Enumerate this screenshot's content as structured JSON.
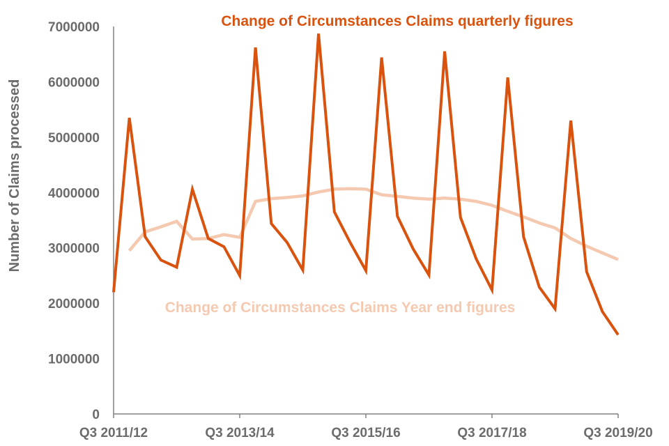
{
  "chart_data": {
    "type": "line",
    "title": "",
    "xlabel": "",
    "ylabel": "Number of Claims processed",
    "ylim": [
      0,
      7000000
    ],
    "y_ticks": [
      "0",
      "1000000",
      "2000000",
      "3000000",
      "4000000",
      "5000000",
      "6000000",
      "7000000"
    ],
    "x_ticks": [
      {
        "index": 0,
        "label": "Q3 2011/12"
      },
      {
        "index": 8,
        "label": "Q3 2013/14"
      },
      {
        "index": 16,
        "label": "Q3 2015/16"
      },
      {
        "index": 24,
        "label": "Q3 2017/18"
      },
      {
        "index": 32,
        "label": "Q3 2019/20"
      }
    ],
    "grid": false,
    "legend": "none",
    "colors": {
      "quarterly": "#d9530f",
      "year_end": "#f5c9b0",
      "axis": "#808080",
      "text": "#6b6b6b"
    },
    "series": [
      {
        "name": "Change of Circumstances Claims quarterly figures",
        "start_index": 0,
        "values": [
          2200000,
          5350000,
          3200000,
          2780000,
          2650000,
          4060000,
          3170000,
          3020000,
          2500000,
          6620000,
          3440000,
          3100000,
          2600000,
          6870000,
          3650000,
          3100000,
          2590000,
          6440000,
          3570000,
          2980000,
          2510000,
          6550000,
          3550000,
          2800000,
          2240000,
          6080000,
          3200000,
          2290000,
          1900000,
          5300000,
          2570000,
          1850000,
          1430000
        ]
      },
      {
        "name": "Change of Circumstances Claims Year end figures",
        "start_index": 1,
        "values": [
          2950000,
          3290000,
          3380000,
          3480000,
          3160000,
          3170000,
          3240000,
          3190000,
          3840000,
          3890000,
          3910000,
          3940000,
          4010000,
          4060000,
          4070000,
          4060000,
          3960000,
          3930000,
          3900000,
          3880000,
          3900000,
          3880000,
          3840000,
          3770000,
          3660000,
          3560000,
          3450000,
          3360000,
          3170000,
          3030000,
          2910000,
          2790000
        ]
      }
    ]
  }
}
